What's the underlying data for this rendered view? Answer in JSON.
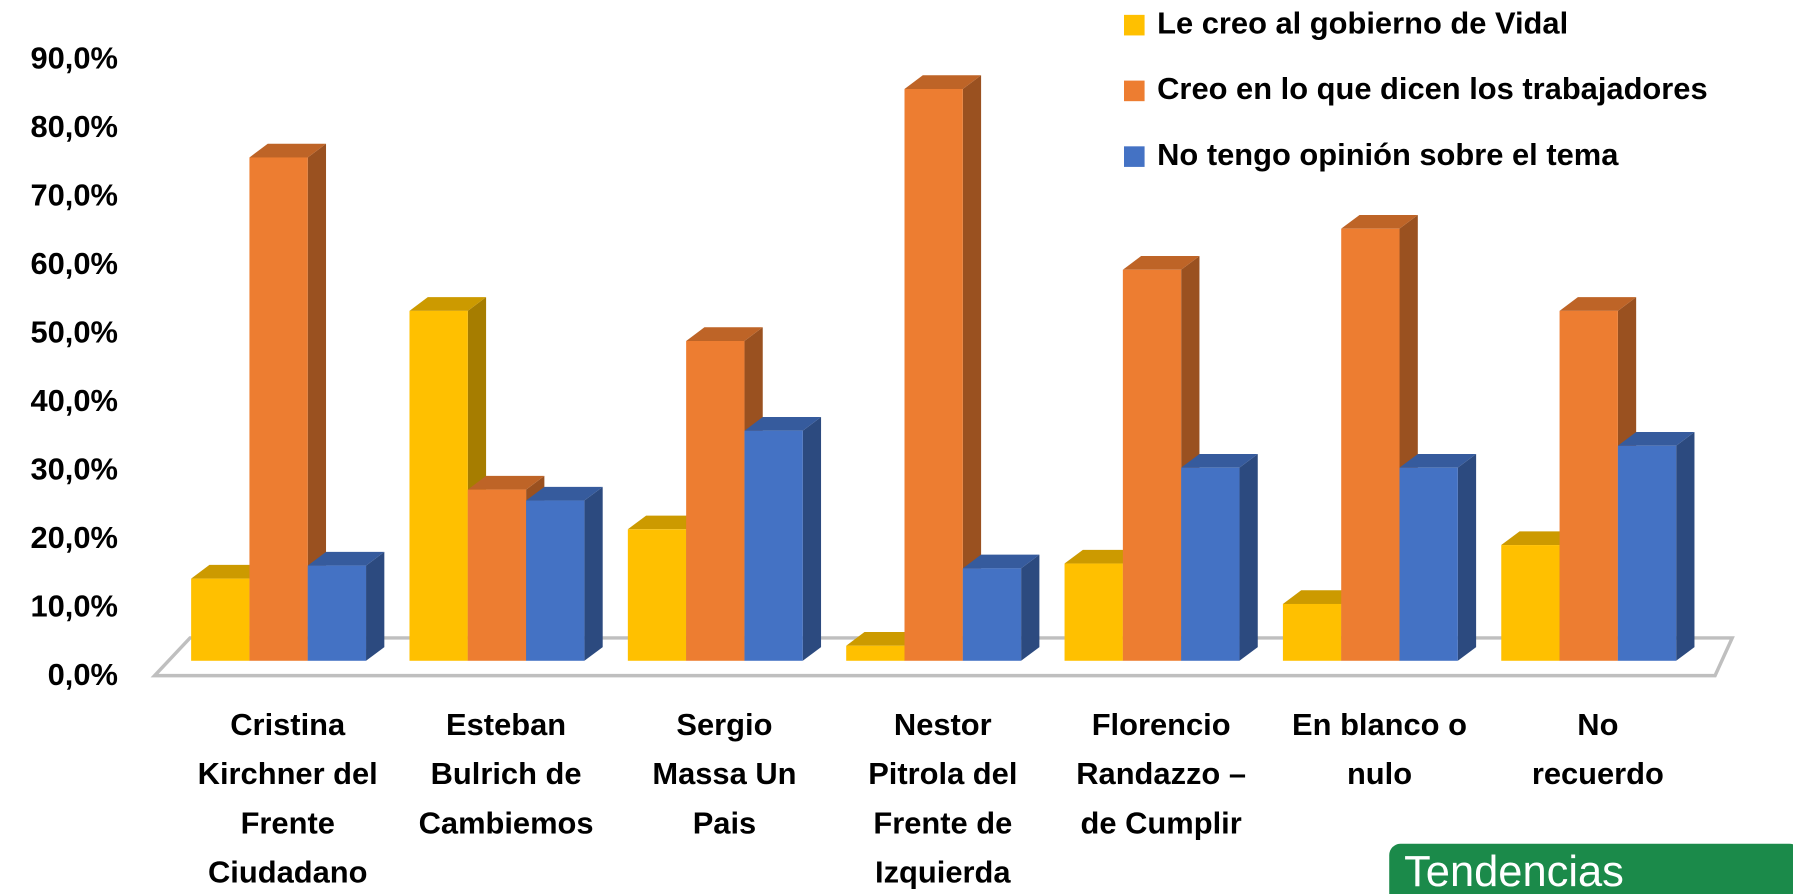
{
  "chart_data": {
    "type": "bar3d",
    "categories": [
      "Cristina\nKirchner del\nFrente\nCiudadano",
      "Esteban\nBulrich de\nCambiemos",
      "Sergio\nMassa Un\nPais",
      "Nestor\nPitrola del\nFrente de\nIzquierda",
      "Florencio\nRandazzo –\nde Cumplir",
      "En blanco o\nnulo",
      "No\nrecuerdo"
    ],
    "series": [
      {
        "name": "Le creo al gobierno de Vidal",
        "color": "#FFC000",
        "values": [
          12.0,
          51.1,
          19.2,
          2.2,
          14.2,
          8.3,
          16.9
        ]
      },
      {
        "name": "Creo en lo que dicen los trabajadores",
        "color": "#ED7D31",
        "values": [
          73.5,
          25.0,
          46.7,
          83.5,
          57.1,
          63.1,
          51.1
        ]
      },
      {
        "name": "No tengo opinión sobre el tema",
        "color": "#4472C4",
        "values": [
          13.9,
          23.4,
          33.6,
          13.5,
          28.2,
          28.2,
          31.4
        ]
      }
    ],
    "ylim": [
      0,
      90
    ],
    "yticks": [
      {
        "value": 0,
        "label": "0,0%"
      },
      {
        "value": 10,
        "label": "10,0%"
      },
      {
        "value": 20,
        "label": "20,0%"
      },
      {
        "value": 30,
        "label": "30,0%"
      },
      {
        "value": 40,
        "label": "40,0%"
      },
      {
        "value": 50,
        "label": "50,0%"
      },
      {
        "value": 60,
        "label": "60,0%"
      },
      {
        "value": 70,
        "label": "70,0%"
      },
      {
        "value": 80,
        "label": "80,0%"
      },
      {
        "value": 90,
        "label": "90,0%"
      }
    ],
    "legend": "top-right",
    "logo": "Tendencias"
  }
}
